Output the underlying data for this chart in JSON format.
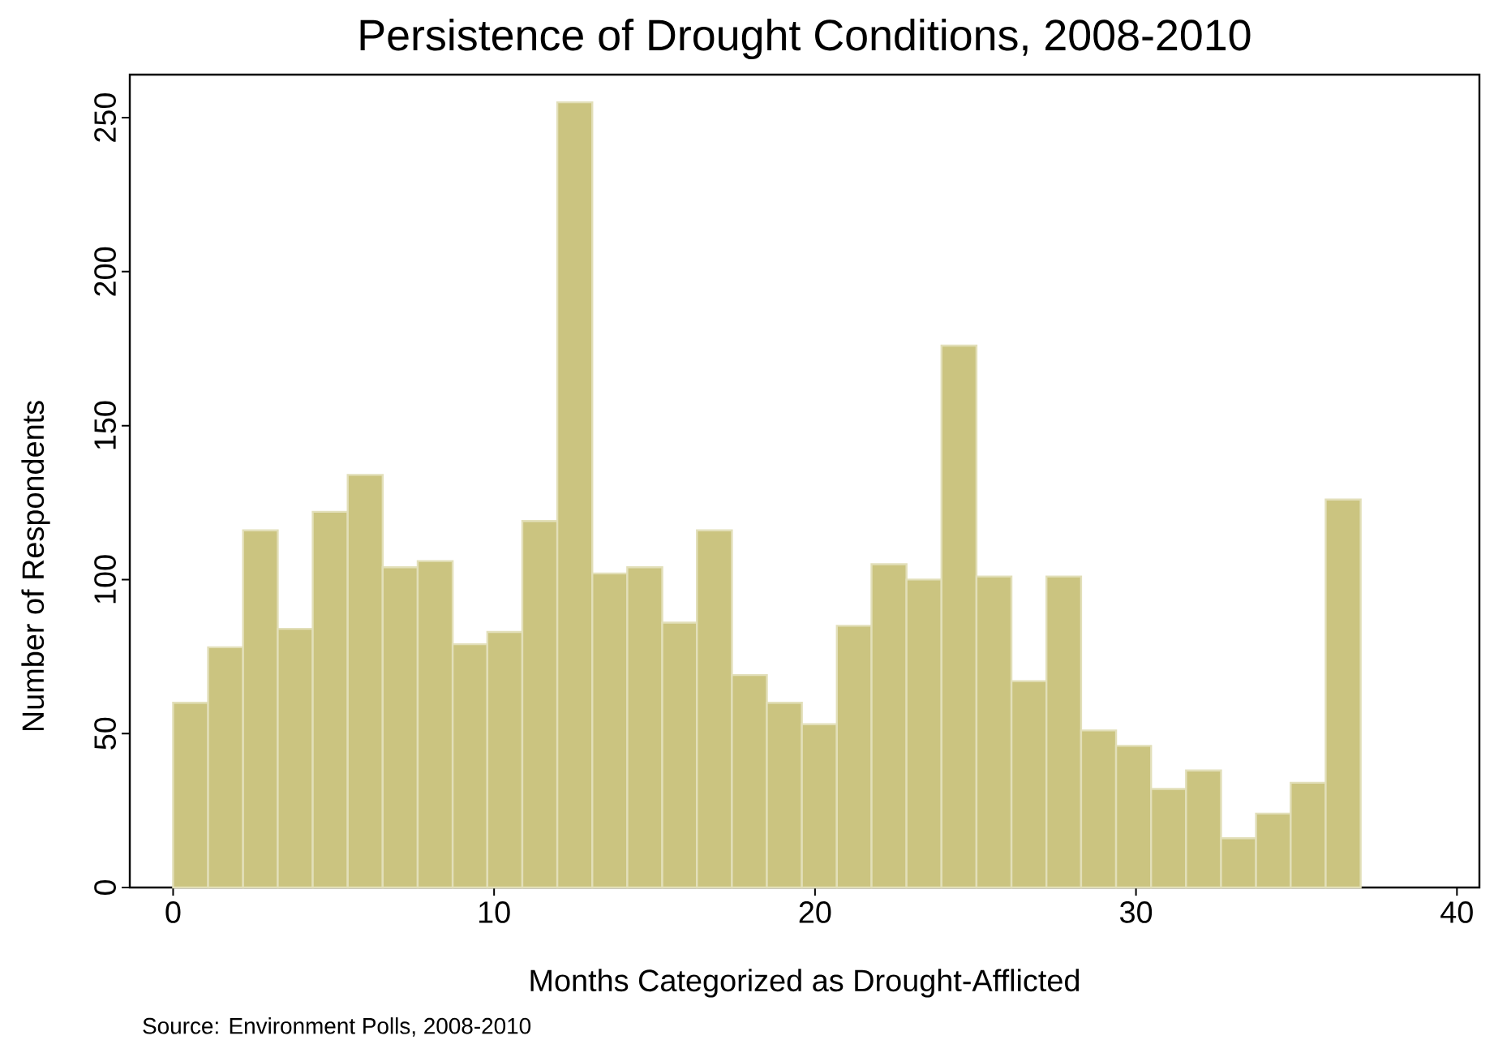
{
  "chart_data": {
    "type": "histogram",
    "title": "Persistence of Drought Conditions, 2008-2010",
    "xlabel": "Months Categorized as Drought-Afflicted",
    "ylabel": "Number of Respondents",
    "annotations": [
      "Source: Environment Polls, 2008-2010"
    ],
    "bins": [
      0,
      1.09,
      2.18,
      3.26,
      4.35,
      5.44,
      6.53,
      7.62,
      8.71,
      9.79,
      10.88,
      11.97,
      13.06,
      14.15,
      15.24,
      16.32,
      17.41,
      18.5,
      19.59,
      20.68,
      21.76,
      22.85,
      23.94,
      25.03,
      26.12,
      27.21,
      28.29,
      29.38,
      30.47,
      31.56,
      32.65,
      33.74,
      34.82,
      35.91,
      37
    ],
    "values": [
      60,
      78,
      116,
      84,
      122,
      134,
      104,
      106,
      79,
      83,
      119,
      255,
      102,
      104,
      86,
      116,
      69,
      60,
      53,
      85,
      105,
      100,
      176,
      101,
      67,
      101,
      51,
      46,
      32,
      38,
      16,
      24,
      34,
      126
    ],
    "color": "#cbc480",
    "xlim": [
      -1.35,
      40.7
    ],
    "ylim": [
      0,
      264
    ],
    "xticks": [
      0,
      10,
      20,
      30,
      40
    ],
    "yticks": [
      0,
      50,
      100,
      150,
      200,
      250
    ]
  }
}
